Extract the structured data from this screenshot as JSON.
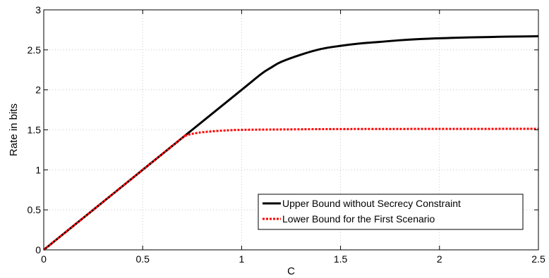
{
  "chart_data": {
    "type": "line",
    "xlabel": "C",
    "ylabel": "Rate in bits",
    "xlim": [
      0,
      2.5
    ],
    "ylim": [
      0,
      3
    ],
    "xticks": [
      0,
      0.5,
      1,
      1.5,
      2,
      2.5
    ],
    "xtick_labels": [
      "0",
      "0.5",
      "1",
      "1.5",
      "2",
      "2.5"
    ],
    "yticks": [
      0,
      0.5,
      1,
      1.5,
      2,
      2.5,
      3
    ],
    "ytick_labels": [
      "0",
      "0.5",
      "1",
      "1.5",
      "2",
      "2.5",
      "3"
    ],
    "grid": true,
    "legend_position": "bottom-right",
    "series": [
      {
        "name": "Upper Bound without Secrecy Constraint",
        "color": "#000000",
        "style": "solid",
        "x": [
          0,
          0.25,
          0.5,
          0.75,
          1.0,
          1.1,
          1.15,
          1.2,
          1.3,
          1.4,
          1.5,
          1.6,
          1.7,
          1.8,
          1.9,
          2.0,
          2.1,
          2.2,
          2.3,
          2.4,
          2.5
        ],
        "y": [
          0,
          0.5,
          1.0,
          1.5,
          2.0,
          2.2,
          2.28,
          2.35,
          2.44,
          2.51,
          2.55,
          2.58,
          2.6,
          2.62,
          2.635,
          2.645,
          2.652,
          2.658,
          2.663,
          2.667,
          2.67
        ]
      },
      {
        "name": "Lower Bound for the First Scenario",
        "color": "#ff0000",
        "style": "dotted",
        "x": [
          0,
          0.25,
          0.5,
          0.7,
          0.72,
          0.75,
          0.8,
          0.9,
          1.0,
          1.2,
          1.5,
          2.0,
          2.5
        ],
        "y": [
          0,
          0.5,
          1.0,
          1.4,
          1.43,
          1.45,
          1.47,
          1.49,
          1.5,
          1.505,
          1.51,
          1.512,
          1.513
        ]
      }
    ]
  }
}
